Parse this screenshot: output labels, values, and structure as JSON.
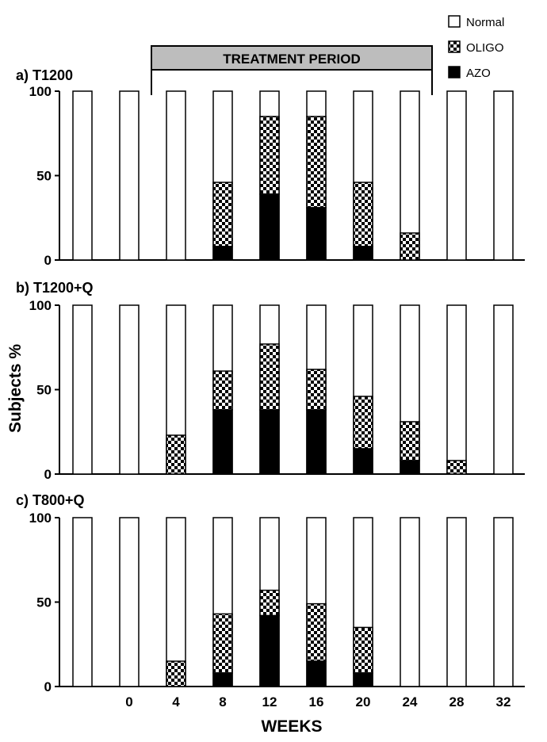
{
  "chart_data": {
    "type": "bar",
    "stacked": true,
    "xlabel": "WEEKS",
    "ylabel": "Subjects %",
    "x_tick_labels": [
      "",
      "0",
      "4",
      "8",
      "12",
      "16",
      "20",
      "24",
      "28",
      "32"
    ],
    "y_ticks": [
      "0",
      "50",
      "100"
    ],
    "ylim": [
      0,
      100
    ],
    "legend": {
      "position": "top-right",
      "entries": [
        {
          "name": "Normal",
          "pattern": "empty"
        },
        {
          "name": "OLIGO",
          "pattern": "checker"
        },
        {
          "name": "AZO",
          "pattern": "solid"
        }
      ]
    },
    "treatment_period": {
      "label": "TREATMENT PERIOD",
      "from_index": 2,
      "to_index": 7
    },
    "panels": [
      {
        "title": "a) T1200",
        "azo": [
          0,
          0,
          0,
          8,
          39,
          31,
          8,
          0,
          0,
          0
        ],
        "oligo": [
          0,
          0,
          0,
          38,
          46,
          54,
          38,
          16,
          0,
          0
        ]
      },
      {
        "title": "b) T1200+Q",
        "azo": [
          0,
          0,
          0,
          38,
          38,
          38,
          15,
          8,
          0,
          0
        ],
        "oligo": [
          0,
          0,
          23,
          23,
          39,
          24,
          31,
          23,
          8,
          0
        ]
      },
      {
        "title": "c) T800+Q",
        "azo": [
          0,
          0,
          0,
          8,
          42,
          15,
          8,
          0,
          0,
          0
        ],
        "oligo": [
          0,
          0,
          15,
          35,
          15,
          34,
          27,
          0,
          0,
          0
        ]
      }
    ]
  }
}
